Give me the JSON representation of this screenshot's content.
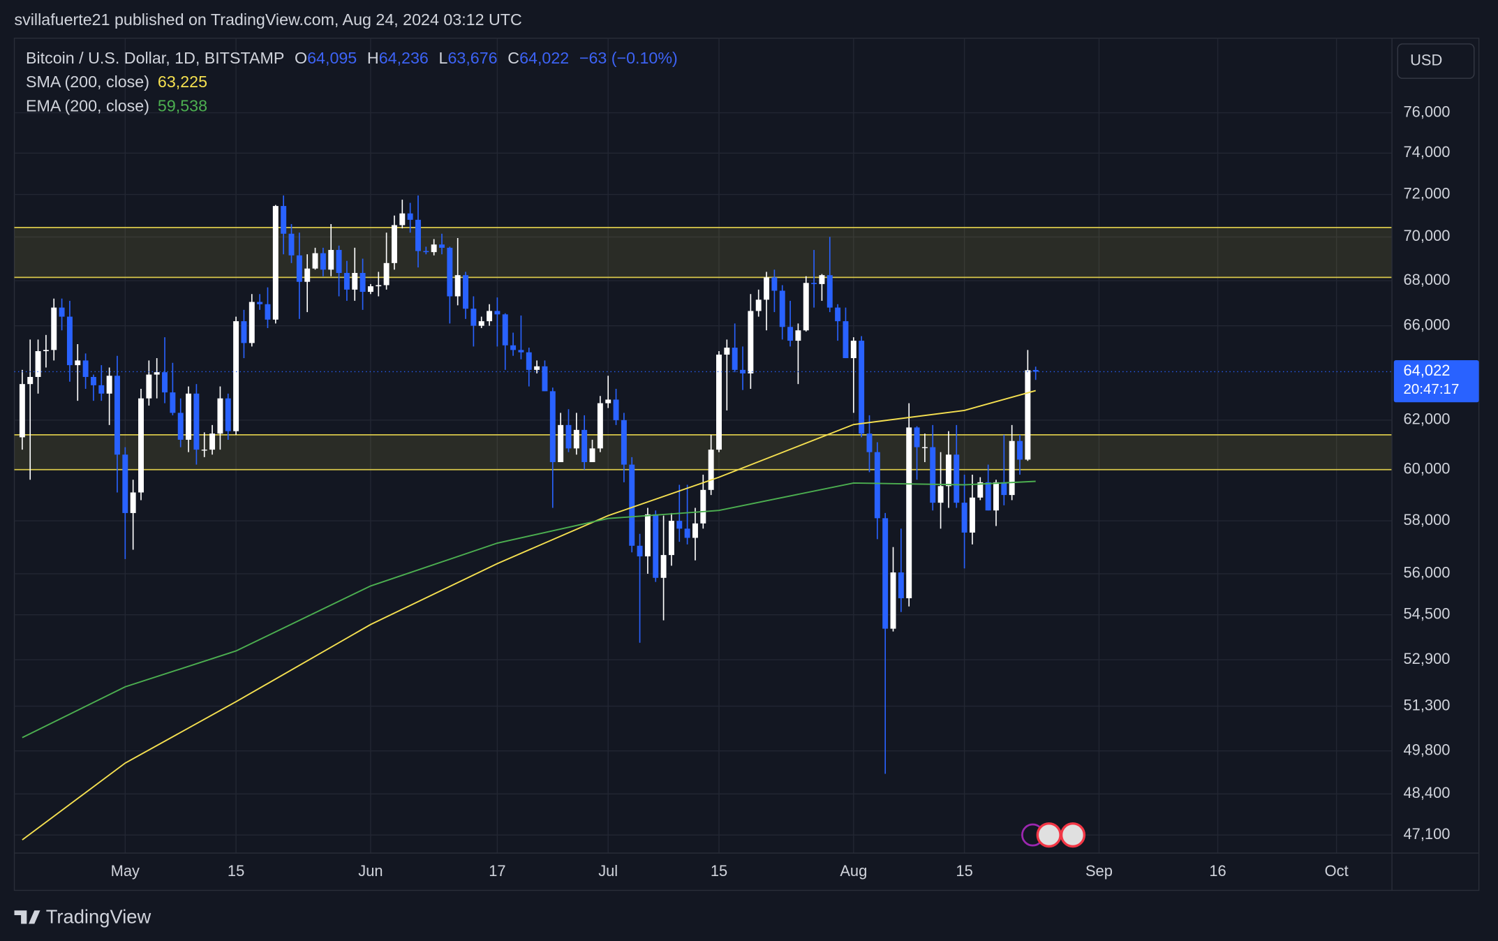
{
  "header": {
    "publisher": "svillafuerte21 published on TradingView.com, Aug 24, 2024 03:12 UTC",
    "brand": "TradingView",
    "currency": "USD"
  },
  "chart_data": {
    "type": "candlestick",
    "symbol": "Bitcoin / U.S. Dollar, 1D, BITSTAMP",
    "ohlc_legend": [
      {
        "key": "O",
        "value": "64,095"
      },
      {
        "key": "H",
        "value": "64,236"
      },
      {
        "key": "L",
        "value": "63,676"
      },
      {
        "key": "C",
        "value": "64,022"
      }
    ],
    "change": "−63 (−0.10%)",
    "last_price_label": "64,022",
    "countdown": "20:47:17",
    "log_scale": true,
    "grid": true,
    "up_color": "#ffffff",
    "down_color": "#2962ff",
    "xlim": [
      "2024-04-17",
      "2024-10-08"
    ],
    "xticks": [
      {
        "value": "2024-05-01",
        "label": "May"
      },
      {
        "value": "2024-05-15",
        "label": "15"
      },
      {
        "value": "2024-06-01",
        "label": "Jun"
      },
      {
        "value": "2024-06-17",
        "label": "17"
      },
      {
        "value": "2024-07-01",
        "label": "Jul"
      },
      {
        "value": "2024-07-15",
        "label": "15"
      },
      {
        "value": "2024-08-01",
        "label": "Aug"
      },
      {
        "value": "2024-08-15",
        "label": "15"
      },
      {
        "value": "2024-09-01",
        "label": "Sep"
      },
      {
        "value": "2024-09-16",
        "label": "16"
      },
      {
        "value": "2024-10-01",
        "label": "Oct"
      }
    ],
    "ylim": [
      46540,
      79850
    ],
    "yticks": [
      {
        "value": 76000,
        "label": "76,000"
      },
      {
        "value": 74000,
        "label": "74,000"
      },
      {
        "value": 72000,
        "label": "72,000"
      },
      {
        "value": 70000,
        "label": "70,000"
      },
      {
        "value": 68000,
        "label": "68,000"
      },
      {
        "value": 66000,
        "label": "66,000"
      },
      {
        "value": 62000,
        "label": "62,000"
      },
      {
        "value": 60000,
        "label": "60,000"
      },
      {
        "value": 58000,
        "label": "58,000"
      },
      {
        "value": 56000,
        "label": "56,000"
      },
      {
        "value": 54500,
        "label": "54,500"
      },
      {
        "value": 52900,
        "label": "52,900"
      },
      {
        "value": 51300,
        "label": "51,300"
      },
      {
        "value": 49800,
        "label": "49,800"
      },
      {
        "value": 48400,
        "label": "48,400"
      },
      {
        "value": 47100,
        "label": "47,100"
      }
    ],
    "zones": [
      {
        "low": 68150,
        "high": 70440,
        "color": "#d9c84a"
      },
      {
        "low": 60000,
        "high": 61400,
        "color": "#d9c84a"
      }
    ],
    "x": [
      "2024-04-18",
      "2024-04-19",
      "2024-04-20",
      "2024-04-21",
      "2024-04-22",
      "2024-04-23",
      "2024-04-24",
      "2024-04-25",
      "2024-04-26",
      "2024-04-27",
      "2024-04-28",
      "2024-04-29",
      "2024-04-30",
      "2024-05-01",
      "2024-05-02",
      "2024-05-03",
      "2024-05-04",
      "2024-05-05",
      "2024-05-06",
      "2024-05-07",
      "2024-05-08",
      "2024-05-09",
      "2024-05-10",
      "2024-05-11",
      "2024-05-12",
      "2024-05-13",
      "2024-05-14",
      "2024-05-15",
      "2024-05-16",
      "2024-05-17",
      "2024-05-18",
      "2024-05-19",
      "2024-05-20",
      "2024-05-21",
      "2024-05-22",
      "2024-05-23",
      "2024-05-24",
      "2024-05-25",
      "2024-05-26",
      "2024-05-27",
      "2024-05-28",
      "2024-05-29",
      "2024-05-30",
      "2024-05-31",
      "2024-06-01",
      "2024-06-02",
      "2024-06-03",
      "2024-06-04",
      "2024-06-05",
      "2024-06-06",
      "2024-06-07",
      "2024-06-08",
      "2024-06-09",
      "2024-06-10",
      "2024-06-11",
      "2024-06-12",
      "2024-06-13",
      "2024-06-14",
      "2024-06-15",
      "2024-06-16",
      "2024-06-17",
      "2024-06-18",
      "2024-06-19",
      "2024-06-20",
      "2024-06-21",
      "2024-06-22",
      "2024-06-23",
      "2024-06-24",
      "2024-06-25",
      "2024-06-26",
      "2024-06-27",
      "2024-06-28",
      "2024-06-29",
      "2024-06-30",
      "2024-07-01",
      "2024-07-02",
      "2024-07-03",
      "2024-07-04",
      "2024-07-05",
      "2024-07-06",
      "2024-07-07",
      "2024-07-08",
      "2024-07-09",
      "2024-07-10",
      "2024-07-11",
      "2024-07-12",
      "2024-07-13",
      "2024-07-14",
      "2024-07-15",
      "2024-07-16",
      "2024-07-17",
      "2024-07-18",
      "2024-07-19",
      "2024-07-20",
      "2024-07-21",
      "2024-07-22",
      "2024-07-23",
      "2024-07-24",
      "2024-07-25",
      "2024-07-26",
      "2024-07-27",
      "2024-07-28",
      "2024-07-29",
      "2024-07-30",
      "2024-07-31",
      "2024-08-01",
      "2024-08-02",
      "2024-08-03",
      "2024-08-04",
      "2024-08-05",
      "2024-08-06",
      "2024-08-07",
      "2024-08-08",
      "2024-08-09",
      "2024-08-10",
      "2024-08-11",
      "2024-08-12",
      "2024-08-13",
      "2024-08-14",
      "2024-08-15",
      "2024-08-16",
      "2024-08-17",
      "2024-08-18",
      "2024-08-19",
      "2024-08-20",
      "2024-08-21",
      "2024-08-22",
      "2024-08-23",
      "2024-08-24"
    ],
    "open": [
      61300,
      63500,
      63800,
      64900,
      64950,
      66800,
      66400,
      64300,
      64500,
      63800,
      63450,
      63100,
      63850,
      60600,
      58300,
      59100,
      62900,
      63900,
      64000,
      63150,
      62300,
      61200,
      63100,
      60800,
      60800,
      61450,
      62900,
      61550,
      66200,
      65250,
      67050,
      66950,
      66270,
      71450,
      70150,
      69150,
      67950,
      68550,
      69250,
      68500,
      69400,
      68350,
      67600,
      68350,
      67500,
      67750,
      67800,
      68800,
      70550,
      71100,
      70800,
      69350,
      69300,
      69650,
      69500,
      67300,
      68250,
      66750,
      66000,
      66200,
      66650,
      66500,
      65150,
      64950,
      64850,
      64100,
      64250,
      63200,
      60300,
      61800,
      60850,
      61600,
      60300,
      60850,
      62700,
      62850,
      62000,
      60200,
      57050,
      56650,
      58250,
      55850,
      56700,
      58000,
      57700,
      57350,
      57900,
      59200,
      60800,
      64750,
      65050,
      64100,
      63950,
      66650,
      67150,
      68150,
      67550,
      65950,
      65350,
      65800,
      67900,
      67850,
      68250,
      66800,
      66200,
      64600,
      65350,
      61450,
      60700,
      58100,
      54000,
      56050,
      55100,
      61700,
      60900,
      60900,
      58700,
      59350,
      60600,
      58700,
      57550,
      58900,
      59500,
      58400,
      59500,
      59000,
      61150,
      60400,
      64095
    ],
    "high": [
      64100,
      65400,
      65400,
      65600,
      67200,
      67200,
      67100,
      65200,
      64800,
      63900,
      64300,
      64200,
      64700,
      60900,
      59600,
      63300,
      64500,
      64600,
      65500,
      64400,
      62900,
      63400,
      63500,
      61500,
      61800,
      63400,
      63100,
      66400,
      66700,
      67400,
      67400,
      67700,
      71500,
      71950,
      70600,
      70200,
      69200,
      69500,
      69500,
      70600,
      69600,
      68900,
      69500,
      69000,
      67850,
      68400,
      70200,
      71000,
      71750,
      71600,
      71950,
      69550,
      69900,
      70150,
      69550,
      69950,
      68400,
      67300,
      66400,
      66950,
      67250,
      66550,
      65700,
      66450,
      65050,
      64500,
      64500,
      63350,
      62300,
      62450,
      62300,
      62200,
      61200,
      63000,
      63850,
      63300,
      62300,
      60500,
      57500,
      58500,
      58400,
      58200,
      58300,
      59400,
      59400,
      58500,
      59800,
      61400,
      64900,
      65400,
      66100,
      65100,
      67400,
      67600,
      68400,
      68500,
      67800,
      67100,
      66100,
      68200,
      69400,
      68300,
      70000,
      66950,
      66800,
      65500,
      65550,
      62200,
      61100,
      58300,
      57000,
      57700,
      62700,
      61750,
      61450,
      61800,
      60700,
      61550,
      61800,
      59800,
      59800,
      59700,
      60200,
      59600,
      61400,
      61800,
      61400,
      64950,
      64236
    ],
    "low": [
      60800,
      59600,
      63100,
      64200,
      64500,
      65800,
      63600,
      62800,
      63300,
      62800,
      62800,
      61800,
      59100,
      56550,
      56900,
      58800,
      62600,
      62900,
      62700,
      62200,
      60900,
      60700,
      60200,
      60500,
      60600,
      60800,
      61200,
      61400,
      64600,
      65100,
      66700,
      65900,
      66100,
      69200,
      68800,
      66300,
      66600,
      68500,
      68200,
      68200,
      67300,
      67100,
      67100,
      66700,
      67400,
      67300,
      67600,
      68500,
      70400,
      70200,
      68600,
      69200,
      69150,
      69200,
      66100,
      66900,
      66300,
      65100,
      65900,
      66000,
      65100,
      64100,
      64700,
      64550,
      63400,
      63950,
      63200,
      58500,
      60300,
      60700,
      60600,
      60000,
      60300,
      60700,
      62500,
      61800,
      59500,
      56800,
      53500,
      56000,
      55700,
      54300,
      56300,
      57200,
      57100,
      56500,
      57700,
      59000,
      60700,
      62400,
      64000,
      63250,
      63300,
      66400,
      65800,
      66600,
      65400,
      65100,
      63500,
      65750,
      66800,
      67100,
      66600,
      65350,
      64600,
      62300,
      61300,
      59900,
      57300,
      49050,
      53900,
      54600,
      54800,
      59600,
      60300,
      58400,
      57700,
      58500,
      58500,
      56200,
      57100,
      58800,
      58400,
      57800,
      58600,
      58800,
      59800,
      60350,
      63676
    ],
    "close": [
      63500,
      63800,
      64900,
      64950,
      66800,
      66400,
      64300,
      64500,
      63800,
      63450,
      63100,
      63850,
      60600,
      58300,
      59100,
      62900,
      63900,
      64000,
      63150,
      62300,
      61200,
      63100,
      60800,
      60800,
      61450,
      62900,
      61550,
      66200,
      65250,
      67050,
      66950,
      66270,
      71450,
      70150,
      69150,
      67950,
      68550,
      69250,
      68500,
      69400,
      68350,
      67600,
      68350,
      67500,
      67750,
      67800,
      68800,
      70550,
      71100,
      70800,
      69350,
      69300,
      69650,
      69500,
      67300,
      68250,
      66750,
      66000,
      66200,
      66650,
      66500,
      65150,
      64950,
      64850,
      64100,
      64250,
      63200,
      60300,
      61800,
      60850,
      61600,
      60300,
      60850,
      62700,
      62850,
      62000,
      60200,
      57050,
      56650,
      58250,
      55850,
      56700,
      58000,
      57700,
      57350,
      57900,
      59200,
      60800,
      64750,
      65050,
      64100,
      63950,
      66650,
      67150,
      68150,
      67550,
      65950,
      65350,
      65800,
      67900,
      67850,
      68250,
      66800,
      66200,
      64600,
      65350,
      61450,
      60700,
      58100,
      54000,
      56050,
      55100,
      61700,
      60900,
      60900,
      58700,
      59350,
      60600,
      58700,
      57550,
      58900,
      59500,
      58400,
      59500,
      59000,
      61150,
      60400,
      64085,
      64022
    ],
    "series": [
      {
        "name": "SMA (200, close)",
        "last_label": "63,225",
        "color": "#f5e050",
        "x": [
          "2024-04-18",
          "2024-05-01",
          "2024-05-15",
          "2024-06-01",
          "2024-06-17",
          "2024-07-01",
          "2024-07-15",
          "2024-08-01",
          "2024-08-15",
          "2024-08-24"
        ],
        "values": [
          46950,
          49400,
          51450,
          54150,
          56380,
          58200,
          59700,
          61820,
          62400,
          63225
        ]
      },
      {
        "name": "EMA (200, close)",
        "last_label": "59,538",
        "color": "#4caf50",
        "x": [
          "2024-04-18",
          "2024-05-01",
          "2024-05-15",
          "2024-06-01",
          "2024-06-17",
          "2024-07-01",
          "2024-07-15",
          "2024-08-01",
          "2024-08-15",
          "2024-08-24"
        ],
        "values": [
          50240,
          51960,
          53210,
          55550,
          57150,
          58090,
          58400,
          59470,
          59400,
          59538
        ]
      }
    ]
  }
}
